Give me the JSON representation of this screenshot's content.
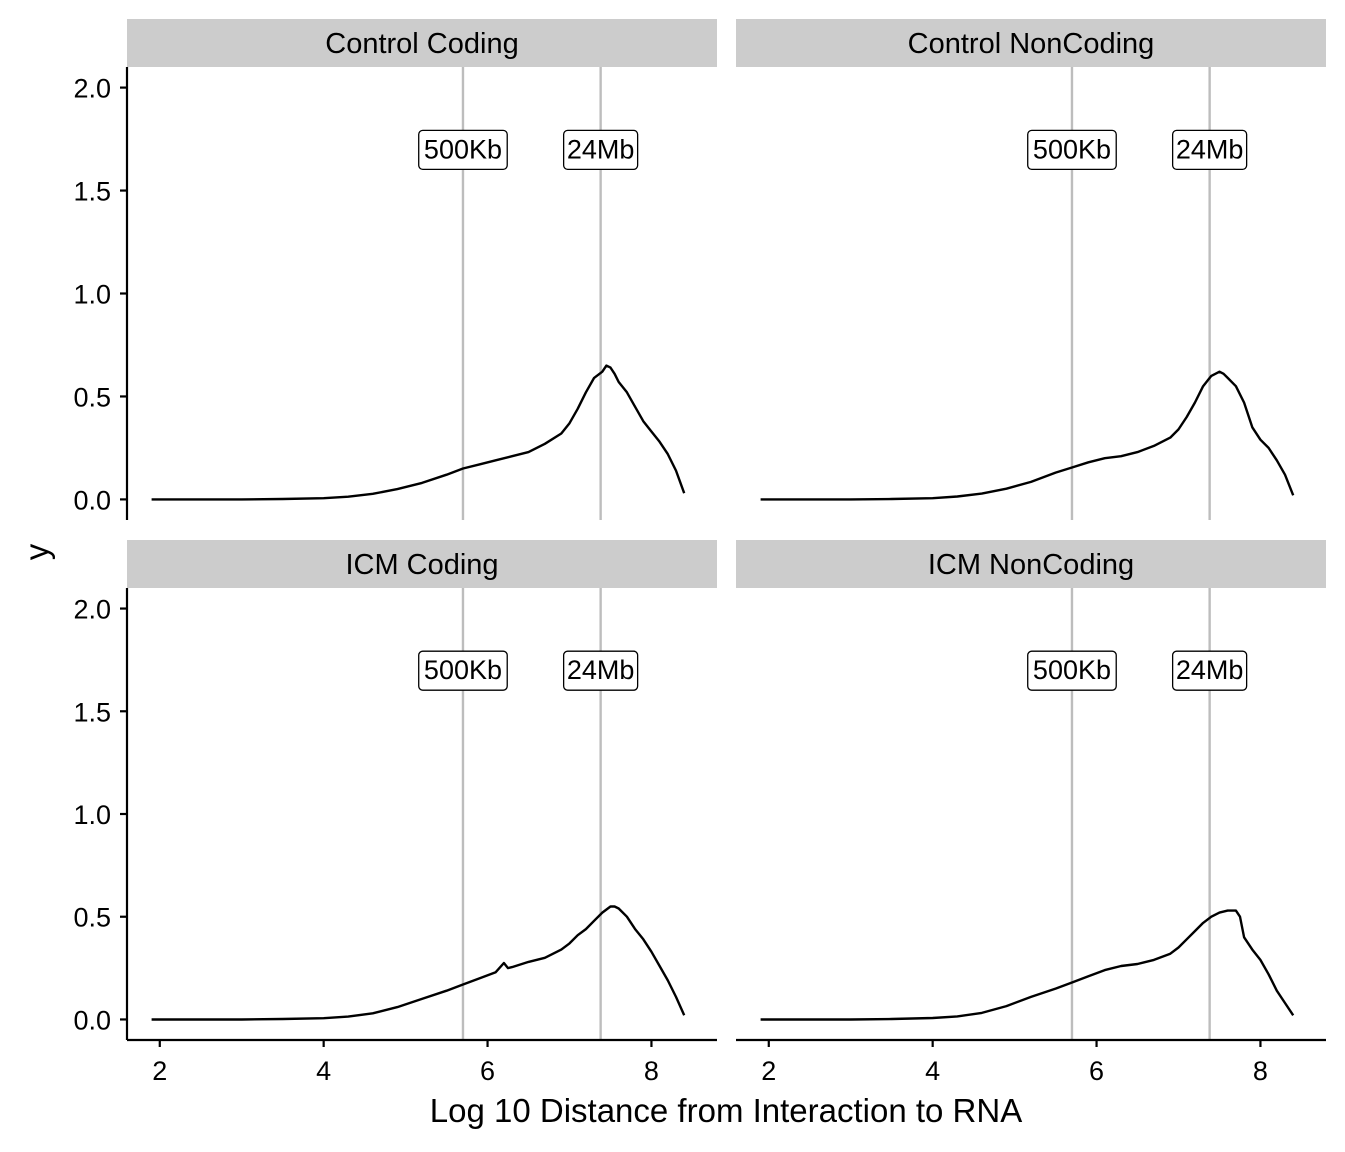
{
  "chart_data": {
    "type": "line",
    "xlabel": "Log 10 Distance from Interaction to RNA",
    "ylabel": "y",
    "xlim": [
      1.6,
      8.8
    ],
    "ylim": [
      -0.1,
      2.1
    ],
    "x_ticks": [
      2,
      4,
      6,
      8
    ],
    "y_ticks": [
      0.0,
      0.5,
      1.0,
      1.5,
      2.0
    ],
    "x_tick_labels": [
      "2",
      "4",
      "6",
      "8"
    ],
    "y_tick_labels": [
      "0.0",
      "0.5",
      "1.0",
      "1.5",
      "2.0"
    ],
    "reference_lines": [
      {
        "label": "500Kb",
        "x": 5.7,
        "label_y": 1.7
      },
      {
        "label": "24Mb",
        "x": 7.38,
        "label_y": 1.7
      }
    ],
    "grid": false,
    "panels": [
      {
        "title": "Control Coding",
        "x": [
          1.9,
          3.0,
          3.5,
          4.0,
          4.3,
          4.6,
          4.9,
          5.2,
          5.5,
          5.7,
          5.9,
          6.1,
          6.3,
          6.5,
          6.7,
          6.9,
          7.0,
          7.1,
          7.2,
          7.3,
          7.4,
          7.45,
          7.5,
          7.55,
          7.6,
          7.7,
          7.8,
          7.9,
          8.0,
          8.1,
          8.2,
          8.3,
          8.4
        ],
        "y": [
          0.0,
          0.0,
          0.002,
          0.006,
          0.013,
          0.027,
          0.05,
          0.08,
          0.12,
          0.15,
          0.17,
          0.19,
          0.21,
          0.23,
          0.27,
          0.32,
          0.37,
          0.44,
          0.52,
          0.59,
          0.62,
          0.65,
          0.64,
          0.61,
          0.57,
          0.52,
          0.45,
          0.38,
          0.33,
          0.28,
          0.22,
          0.14,
          0.03
        ]
      },
      {
        "title": "Control NonCoding",
        "x": [
          1.9,
          3.0,
          3.5,
          4.0,
          4.3,
          4.6,
          4.9,
          5.2,
          5.5,
          5.7,
          5.9,
          6.1,
          6.3,
          6.5,
          6.7,
          6.9,
          7.0,
          7.1,
          7.2,
          7.3,
          7.4,
          7.45,
          7.5,
          7.55,
          7.6,
          7.7,
          7.8,
          7.9,
          8.0,
          8.1,
          8.2,
          8.3,
          8.4
        ],
        "y": [
          0.0,
          0.0,
          0.002,
          0.006,
          0.014,
          0.028,
          0.052,
          0.085,
          0.13,
          0.155,
          0.18,
          0.2,
          0.21,
          0.23,
          0.26,
          0.3,
          0.34,
          0.4,
          0.47,
          0.55,
          0.6,
          0.61,
          0.62,
          0.61,
          0.59,
          0.55,
          0.47,
          0.35,
          0.29,
          0.25,
          0.19,
          0.12,
          0.02
        ]
      },
      {
        "title": "ICM Coding",
        "x": [
          1.9,
          3.0,
          3.5,
          4.0,
          4.3,
          4.6,
          4.9,
          5.2,
          5.5,
          5.7,
          5.9,
          6.1,
          6.2,
          6.25,
          6.3,
          6.5,
          6.7,
          6.9,
          7.0,
          7.1,
          7.2,
          7.3,
          7.4,
          7.5,
          7.55,
          7.6,
          7.7,
          7.8,
          7.9,
          8.0,
          8.1,
          8.2,
          8.3,
          8.4
        ],
        "y": [
          0.0,
          0.0,
          0.002,
          0.006,
          0.014,
          0.03,
          0.06,
          0.1,
          0.14,
          0.17,
          0.2,
          0.23,
          0.275,
          0.25,
          0.255,
          0.28,
          0.3,
          0.34,
          0.37,
          0.41,
          0.44,
          0.48,
          0.52,
          0.55,
          0.55,
          0.54,
          0.5,
          0.44,
          0.39,
          0.33,
          0.26,
          0.19,
          0.11,
          0.02
        ]
      },
      {
        "title": "ICM NonCoding",
        "x": [
          1.9,
          3.0,
          3.5,
          4.0,
          4.3,
          4.6,
          4.9,
          5.2,
          5.5,
          5.7,
          5.9,
          6.1,
          6.3,
          6.5,
          6.7,
          6.9,
          7.0,
          7.1,
          7.2,
          7.3,
          7.4,
          7.5,
          7.6,
          7.7,
          7.75,
          7.8,
          7.9,
          8.0,
          8.1,
          8.2,
          8.3,
          8.4
        ],
        "y": [
          0.0,
          0.0,
          0.002,
          0.007,
          0.015,
          0.032,
          0.065,
          0.11,
          0.15,
          0.18,
          0.21,
          0.24,
          0.26,
          0.27,
          0.29,
          0.32,
          0.35,
          0.39,
          0.43,
          0.47,
          0.5,
          0.52,
          0.53,
          0.53,
          0.5,
          0.4,
          0.34,
          0.29,
          0.22,
          0.14,
          0.08,
          0.02
        ]
      }
    ]
  }
}
